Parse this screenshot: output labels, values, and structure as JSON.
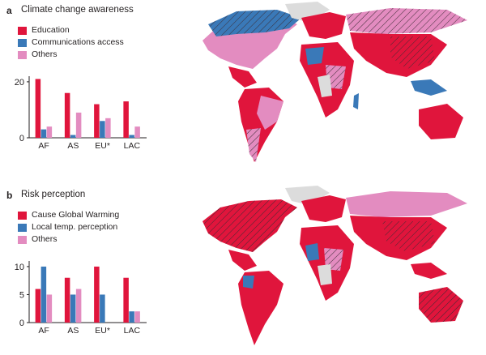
{
  "colors": {
    "red": "#e0153c",
    "blue": "#3a79b8",
    "pink": "#e38cc0",
    "gray": "#dcdcdc",
    "hatch": "#3b2b33"
  },
  "panels": [
    {
      "label": "a",
      "title": "Climate change awareness",
      "legend": [
        "Education",
        "Communications access",
        "Others"
      ]
    },
    {
      "label": "b",
      "title": "Risk perception",
      "legend": [
        "Cause Global Warming",
        "Local temp. perception",
        "Others"
      ]
    }
  ],
  "chart_data": [
    {
      "type": "bar",
      "title": "",
      "categories": [
        "AF",
        "AS",
        "EU*",
        "LAC"
      ],
      "series": [
        {
          "name": "Education",
          "values": [
            21,
            16,
            12,
            13
          ]
        },
        {
          "name": "Communications access",
          "values": [
            3,
            1,
            6,
            1
          ]
        },
        {
          "name": "Others",
          "values": [
            4,
            9,
            7,
            4
          ]
        }
      ],
      "yticks": [
        "0",
        "20"
      ],
      "ylim": [
        0,
        22
      ],
      "grid": false,
      "legend_position": "top-left"
    },
    {
      "type": "bar",
      "title": "",
      "categories": [
        "AF",
        "AS",
        "EU*",
        "LAC"
      ],
      "series": [
        {
          "name": "Cause Global Warming",
          "values": [
            6,
            8,
            10,
            8
          ]
        },
        {
          "name": "Local temp. perception",
          "values": [
            10,
            5,
            5,
            2
          ]
        },
        {
          "name": "Others",
          "values": [
            5,
            6,
            0,
            2
          ]
        }
      ],
      "yticks": [
        "0",
        "5",
        "10"
      ],
      "ylim": [
        0,
        11
      ],
      "grid": false,
      "legend_position": "top-left"
    }
  ]
}
